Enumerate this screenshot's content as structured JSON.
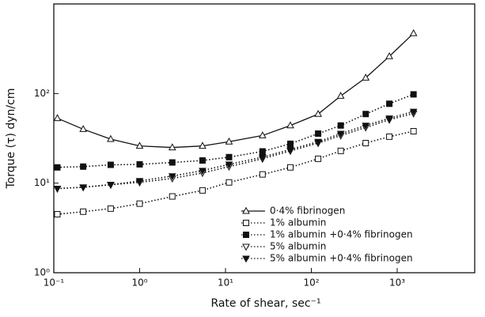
{
  "chart_data": {
    "type": "line",
    "xlabel": "Rate of shear,   sec⁻¹",
    "ylabel": "Torque (τ)  dyn/cm",
    "x": [
      0.11,
      0.22,
      0.46,
      1.0,
      2.4,
      5.4,
      11,
      27,
      57,
      120,
      220,
      430,
      810,
      1550
    ],
    "series": [
      {
        "name": "0·4% fibrinogen",
        "color": "#111",
        "marker": "triangle-up-open",
        "line_style": "solid",
        "values": [
          53,
          40,
          31,
          26,
          25,
          26,
          29,
          34,
          44,
          59,
          94,
          150,
          260,
          470
        ]
      },
      {
        "name": "1% albumin",
        "color": "#111",
        "marker": "square-open",
        "line_style": "dotted",
        "values": [
          4.5,
          4.8,
          5.2,
          5.9,
          7.1,
          8.3,
          10.2,
          12.5,
          15,
          18.7,
          22.9,
          28,
          33,
          38
        ]
      },
      {
        "name": "1% albumin +0·4% fibrinogen",
        "color": "#111",
        "marker": "square-filled",
        "line_style": "dotted",
        "values": [
          15,
          15.3,
          16,
          16.2,
          17,
          17.9,
          19.5,
          22.6,
          27.5,
          35.7,
          44,
          59,
          77,
          98
        ]
      },
      {
        "name": "5% albumin",
        "color": "#111",
        "marker": "triangle-down-open",
        "line_style": "dotted",
        "values": [
          8.7,
          9,
          9.6,
          10.2,
          11.3,
          13,
          15.3,
          18.7,
          22.9,
          28,
          34,
          41.8,
          51,
          60
        ]
      },
      {
        "name": "5% albumin +0·4% fibrinogen",
        "color": "#111",
        "marker": "triangle-down-filled",
        "line_style": "dotted",
        "values": [
          8.7,
          9,
          9.6,
          10.6,
          12,
          13.8,
          16.2,
          19.5,
          23.8,
          29,
          35.7,
          44,
          53,
          63
        ]
      }
    ],
    "xlim": [
      0.1,
      8000
    ],
    "ylim": [
      1,
      1000
    ],
    "xscale": "log",
    "yscale": "log",
    "xticks": [
      {
        "value": 0.1,
        "label": "10⁻¹"
      },
      {
        "value": 1,
        "label": "10⁰"
      },
      {
        "value": 10,
        "label": "10¹"
      },
      {
        "value": 100,
        "label": "10²"
      },
      {
        "value": 1000,
        "label": "10³"
      }
    ],
    "yticks": [
      {
        "value": 1,
        "label": "10⁰"
      },
      {
        "value": 10,
        "label": "10¹"
      },
      {
        "value": 100,
        "label": "10²"
      }
    ],
    "legend": "lower right",
    "grid": false
  }
}
